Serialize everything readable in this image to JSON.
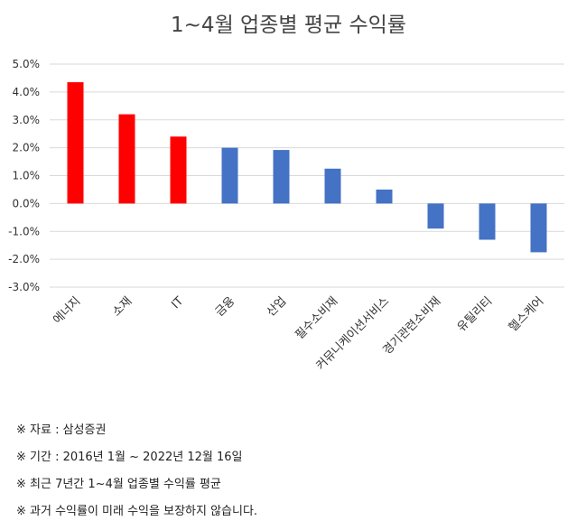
{
  "chart_data": {
    "type": "bar",
    "title": "1~4월 업종별 평균 수익률",
    "categories": [
      "에너지",
      "소재",
      "IT",
      "금융",
      "산업",
      "필수소비재",
      "커뮤니케이션서비스",
      "경기관련소비재",
      "유틸리티",
      "헬스케어"
    ],
    "values": [
      4.35,
      3.2,
      2.4,
      2.0,
      1.92,
      1.25,
      0.5,
      -0.9,
      -1.3,
      -1.75
    ],
    "colors": [
      "#ff0000",
      "#ff0000",
      "#ff0000",
      "#4472c4",
      "#4472c4",
      "#4472c4",
      "#4472c4",
      "#4472c4",
      "#4472c4",
      "#4472c4"
    ],
    "yticks": [
      "5.0%",
      "4.0%",
      "3.0%",
      "2.0%",
      "1.0%",
      "0.0%",
      "-1.0%",
      "-2.0%",
      "-3.0%"
    ],
    "ylim": [
      -3.0,
      5.0
    ],
    "grid": true,
    "xlabel": "",
    "ylabel": ""
  },
  "notes": [
    "※ 자료 : 삼성증권",
    "※ 기간 : 2016년 1월 ~ 2022년 12월 16일",
    "※ 최근 7년간 1~4월 업종별 수익률 평균",
    "※ 과거 수익률이 미래 수익을 보장하지 않습니다."
  ]
}
